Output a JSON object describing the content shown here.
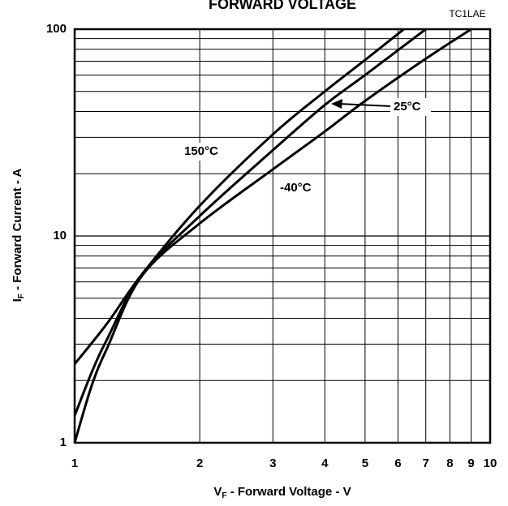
{
  "chart_data": {
    "type": "line",
    "title": "FORWARD VOLTAGE",
    "code": "TC1LAE",
    "xlabel": {
      "main": "V",
      "sub": "F",
      "rest": " - Forward Voltage - V"
    },
    "ylabel": {
      "main": "I",
      "sub": "F",
      "rest": " - Forward Current - A"
    },
    "xscale": "log",
    "yscale": "log",
    "xlim": [
      1,
      10
    ],
    "ylim": [
      1,
      100
    ],
    "xticks": [
      1,
      2,
      3,
      4,
      5,
      6,
      7,
      8,
      9,
      10
    ],
    "yticks": [
      1,
      10,
      100
    ],
    "yminor": [
      2,
      3,
      4,
      5,
      6,
      7,
      8,
      9,
      20,
      30,
      40,
      50,
      60,
      70,
      80,
      90
    ],
    "grid": true,
    "series": [
      {
        "name": "150°C",
        "color": "#000000",
        "x": [
          1,
          1.2,
          1.45,
          2,
          3,
          4,
          5,
          6.2
        ],
        "values": [
          2.4,
          3.8,
          6.5,
          14,
          31,
          50,
          71,
          100
        ]
      },
      {
        "name": "25°C",
        "color": "#000000",
        "x": [
          1,
          1.1,
          1.2,
          1.45,
          2,
          3,
          4,
          5,
          7
        ],
        "values": [
          1.35,
          2.2,
          3.2,
          6.5,
          12.5,
          26,
          43,
          60,
          100
        ]
      },
      {
        "name": "-40°C",
        "color": "#000000",
        "x": [
          1,
          1.1,
          1.2,
          1.45,
          2,
          3,
          4,
          5,
          7,
          9
        ],
        "values": [
          1.0,
          1.9,
          2.9,
          6.4,
          11.5,
          21,
          32,
          45,
          72,
          100
        ]
      }
    ]
  }
}
